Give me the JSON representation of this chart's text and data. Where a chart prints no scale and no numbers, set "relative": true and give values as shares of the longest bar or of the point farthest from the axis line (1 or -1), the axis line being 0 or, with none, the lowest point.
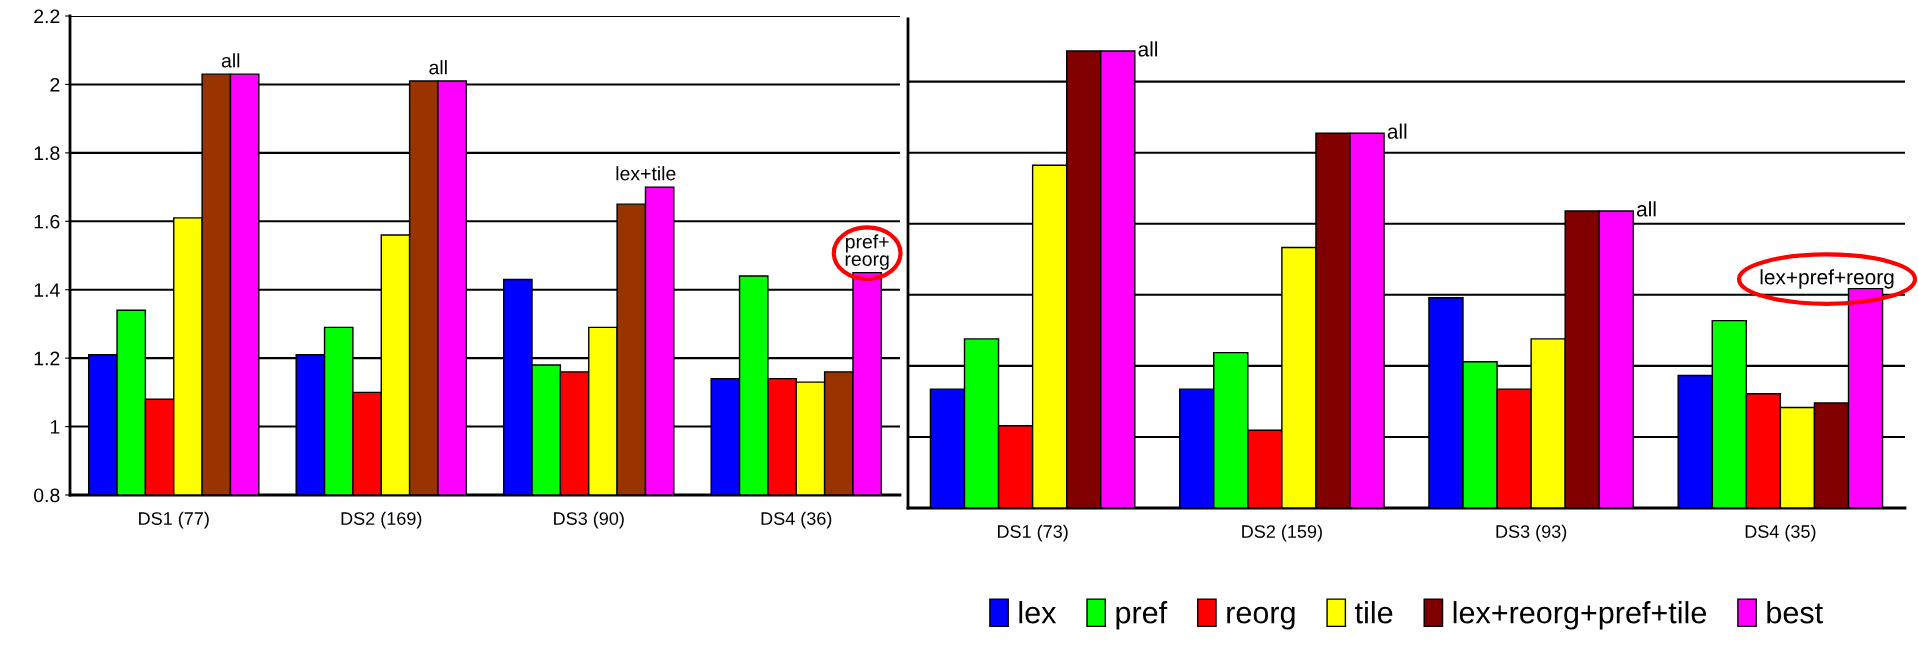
{
  "chart_data": [
    {
      "type": "bar",
      "categories": [
        "DS1 (77)",
        "DS2 (169)",
        "DS3 (90)",
        "DS4 (36)"
      ],
      "ylim": [
        0.8,
        2.2
      ],
      "yticks": [
        {
          "value": 0.8,
          "label": "0.8"
        },
        {
          "value": 1.0,
          "label": "1"
        },
        {
          "value": 1.2,
          "label": "1.2"
        },
        {
          "value": 1.4,
          "label": "1.4"
        },
        {
          "value": 1.6,
          "label": "1.6"
        },
        {
          "value": 1.8,
          "label": "1.8"
        },
        {
          "value": 2.0,
          "label": "2"
        },
        {
          "value": 2.2,
          "label": "2.2"
        }
      ],
      "grid": "y",
      "legend": false,
      "series": [
        {
          "color": "#0000ff",
          "values": [
            1.21,
            1.21,
            1.43,
            1.14
          ]
        },
        {
          "color": "#00ff00",
          "values": [
            1.34,
            1.29,
            1.18,
            1.44
          ]
        },
        {
          "color": "#ff0000",
          "values": [
            1.08,
            1.1,
            1.16,
            1.14
          ]
        },
        {
          "color": "#ffff00",
          "values": [
            1.61,
            1.56,
            1.29,
            1.13
          ]
        },
        {
          "color": "#993300",
          "values": [
            2.03,
            2.01,
            1.65,
            1.16
          ]
        },
        {
          "color": "#ff00ff",
          "values": [
            2.03,
            2.01,
            1.7,
            1.45
          ]
        }
      ],
      "annotations": [
        "all",
        "all",
        "lex+tile",
        "pref+\nreorg"
      ]
    },
    {
      "type": "bar",
      "categories": [
        "DS1 (73)",
        "DS2 (159)",
        "DS3 (93)",
        "DS4 (35)"
      ],
      "relative": true,
      "grid": "y",
      "legend": "bottom",
      "series": [
        {
          "name": "lex",
          "color": "#0000ff",
          "values": [
            0.26,
            0.26,
            0.46,
            0.29
          ]
        },
        {
          "name": "pref",
          "color": "#00ff00",
          "values": [
            0.37,
            0.34,
            0.32,
            0.41
          ]
        },
        {
          "name": "reorg",
          "color": "#ff0000",
          "values": [
            0.18,
            0.17,
            0.26,
            0.25
          ]
        },
        {
          "name": "tile",
          "color": "#ffff00",
          "values": [
            0.75,
            0.57,
            0.37,
            0.22
          ]
        },
        {
          "name": "lex+reorg+pref+tile",
          "color": "#800000",
          "values": [
            1,
            0.82,
            0.65,
            0.23
          ]
        },
        {
          "name": "best",
          "color": "#ff00ff",
          "values": [
            1,
            0.82,
            0.65,
            0.48
          ]
        }
      ],
      "annotations": [
        "all",
        "all",
        "all",
        "lex+pref+reorg"
      ]
    }
  ]
}
